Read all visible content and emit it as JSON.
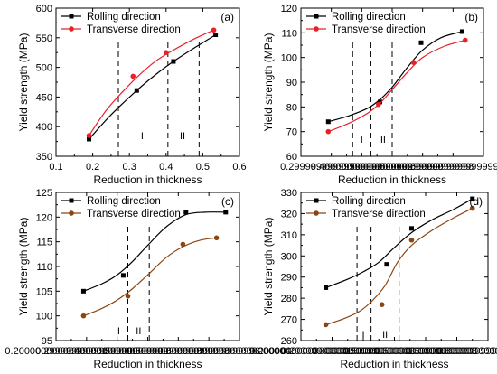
{
  "chart_data": [
    {
      "panel": "(a)",
      "type": "line",
      "xlabel": "Reduction in thickness",
      "ylabel": "Yield strength (MPa)",
      "xlim": [
        0.1,
        0.6
      ],
      "ylim": [
        350,
        600
      ],
      "xticks": [
        0.1,
        0.2,
        0.3,
        0.4,
        0.5,
        0.6
      ],
      "yticks": [
        350,
        400,
        450,
        500,
        550,
        600
      ],
      "legend_position": "top-left",
      "region_lines": [
        0.27,
        0.405,
        0.49
      ],
      "regions": [
        {
          "label": "I",
          "x": 0.335,
          "y": 385
        },
        {
          "label": "II",
          "x": 0.445,
          "y": 385
        }
      ],
      "series": [
        {
          "name": "Rolling direction",
          "color": "#000000",
          "marker": "square",
          "x": [
            0.19,
            0.32,
            0.42,
            0.535
          ],
          "y": [
            379,
            461,
            510,
            555
          ],
          "curve_x": [
            0.19,
            0.25,
            0.32,
            0.37,
            0.42,
            0.48,
            0.535
          ],
          "curve_y": [
            379,
            420,
            461,
            487,
            510,
            534,
            555
          ]
        },
        {
          "name": "Transverse direction",
          "color": "#e8202a",
          "marker": "circle",
          "x": [
            0.19,
            0.31,
            0.4,
            0.53
          ],
          "y": [
            385,
            485,
            525,
            563
          ],
          "curve_x": [
            0.19,
            0.24,
            0.31,
            0.36,
            0.4,
            0.47,
            0.53
          ],
          "curve_y": [
            385,
            430,
            477,
            505,
            522,
            546,
            563
          ]
        }
      ]
    },
    {
      "panel": "(b)",
      "type": "line",
      "xlabel": "Reduction in thickness",
      "ylabel": "Yield strength (MPa)",
      "xlim": [
        0.2,
        0.8
      ],
      "ylim": [
        60,
        120
      ],
      "xticks": [
        0.3,
        0.4,
        0.5,
        0.6,
        0.7
      ],
      "yticks": [
        60,
        70,
        80,
        90,
        100,
        110,
        120
      ],
      "legend_position": "top-left",
      "region_lines": [
        0.37,
        0.43,
        0.5
      ],
      "regions": [
        {
          "label": "I",
          "x": 0.4,
          "y": 67
        },
        {
          "label": "II",
          "x": 0.47,
          "y": 67
        }
      ],
      "series": [
        {
          "name": "Rolling direction",
          "color": "#000000",
          "marker": "square",
          "x": [
            0.29,
            0.46,
            0.595,
            0.73
          ],
          "y": [
            74,
            82,
            106,
            110.5
          ],
          "curve_x": [
            0.29,
            0.36,
            0.42,
            0.46,
            0.5,
            0.55,
            0.6,
            0.66,
            0.73
          ],
          "curve_y": [
            74,
            76.5,
            79.5,
            83,
            88,
            96,
            103,
            108,
            110.5
          ]
        },
        {
          "name": "Transverse direction",
          "color": "#e8202a",
          "marker": "circle",
          "x": [
            0.29,
            0.455,
            0.57,
            0.74
          ],
          "y": [
            70,
            81,
            98,
            107
          ],
          "curve_x": [
            0.29,
            0.36,
            0.42,
            0.46,
            0.5,
            0.55,
            0.6,
            0.67,
            0.74
          ],
          "curve_y": [
            70,
            73.5,
            77.5,
            81.5,
            87,
            94,
            100,
            104.5,
            107
          ]
        }
      ]
    },
    {
      "panel": "(c)",
      "type": "line",
      "xlabel": "Reduction in thickness",
      "ylabel": "Yield strength (MPa)",
      "xlim": [
        0.2,
        0.8
      ],
      "ylim": [
        95,
        125
      ],
      "xticks": [
        0.2,
        0.3,
        0.4,
        0.5,
        0.6,
        0.7,
        0.8
      ],
      "yticks": [
        95,
        100,
        105,
        110,
        115,
        120,
        125
      ],
      "legend_position": "top-left",
      "region_lines": [
        0.37,
        0.435,
        0.505
      ],
      "regions": [
        {
          "label": "I",
          "x": 0.405,
          "y": 97
        },
        {
          "label": "II",
          "x": 0.47,
          "y": 97
        }
      ],
      "series": [
        {
          "name": "Rolling direction",
          "color": "#000000",
          "marker": "square",
          "x": [
            0.29,
            0.42,
            0.625,
            0.755
          ],
          "y": [
            105,
            108.2,
            121,
            121
          ],
          "curve_x": [
            0.29,
            0.35,
            0.4,
            0.45,
            0.5,
            0.56,
            0.625,
            0.69,
            0.755
          ],
          "curve_y": [
            105,
            106.5,
            108.3,
            111,
            114.3,
            118,
            120.5,
            121,
            121
          ]
        },
        {
          "name": "Transverse direction",
          "color": "#8b4513",
          "marker": "circle",
          "x": [
            0.29,
            0.435,
            0.615,
            0.725
          ],
          "y": [
            100,
            104,
            114.5,
            115.8
          ],
          "curve_x": [
            0.29,
            0.35,
            0.4,
            0.45,
            0.5,
            0.56,
            0.615,
            0.67,
            0.725
          ],
          "curve_y": [
            100,
            101.5,
            103.2,
            105.5,
            108.3,
            111.8,
            114,
            115.3,
            115.8
          ]
        }
      ]
    },
    {
      "panel": "(d)",
      "type": "line",
      "xlabel": "Reduction in thickness",
      "ylabel": "Yield strength (MPa)",
      "xlim": [
        0.2,
        0.8
      ],
      "ylim": [
        260,
        330
      ],
      "xticks": [
        0.2,
        0.3,
        0.4,
        0.5,
        0.6,
        0.7,
        0.8
      ],
      "yticks": [
        260,
        270,
        280,
        290,
        300,
        310,
        320,
        330
      ],
      "legend_position": "top-left",
      "region_lines": [
        0.38,
        0.425,
        0.515
      ],
      "regions": [
        {
          "label": "I",
          "x": 0.4,
          "y": 263
        },
        {
          "label": "II",
          "x": 0.47,
          "y": 263
        }
      ],
      "series": [
        {
          "name": "Rolling direction",
          "color": "#000000",
          "marker": "square",
          "x": [
            0.28,
            0.475,
            0.555,
            0.75
          ],
          "y": [
            285,
            296,
            313,
            327
          ],
          "curve_x": [
            0.28,
            0.35,
            0.4,
            0.45,
            0.5,
            0.555,
            0.62,
            0.69,
            0.75
          ],
          "curve_y": [
            285,
            289,
            292.5,
            297,
            304,
            311,
            317,
            322,
            327
          ]
        },
        {
          "name": "Transverse direction",
          "color": "#8b4513",
          "marker": "circle",
          "x": [
            0.28,
            0.46,
            0.555,
            0.75
          ],
          "y": [
            267.5,
            277,
            307.5,
            322.5
          ],
          "curve_x": [
            0.28,
            0.34,
            0.39,
            0.43,
            0.47,
            0.51,
            0.555,
            0.62,
            0.69,
            0.75
          ],
          "curve_y": [
            267.5,
            270.5,
            274,
            279,
            286,
            297,
            305,
            312,
            318,
            322.5
          ]
        }
      ]
    }
  ]
}
